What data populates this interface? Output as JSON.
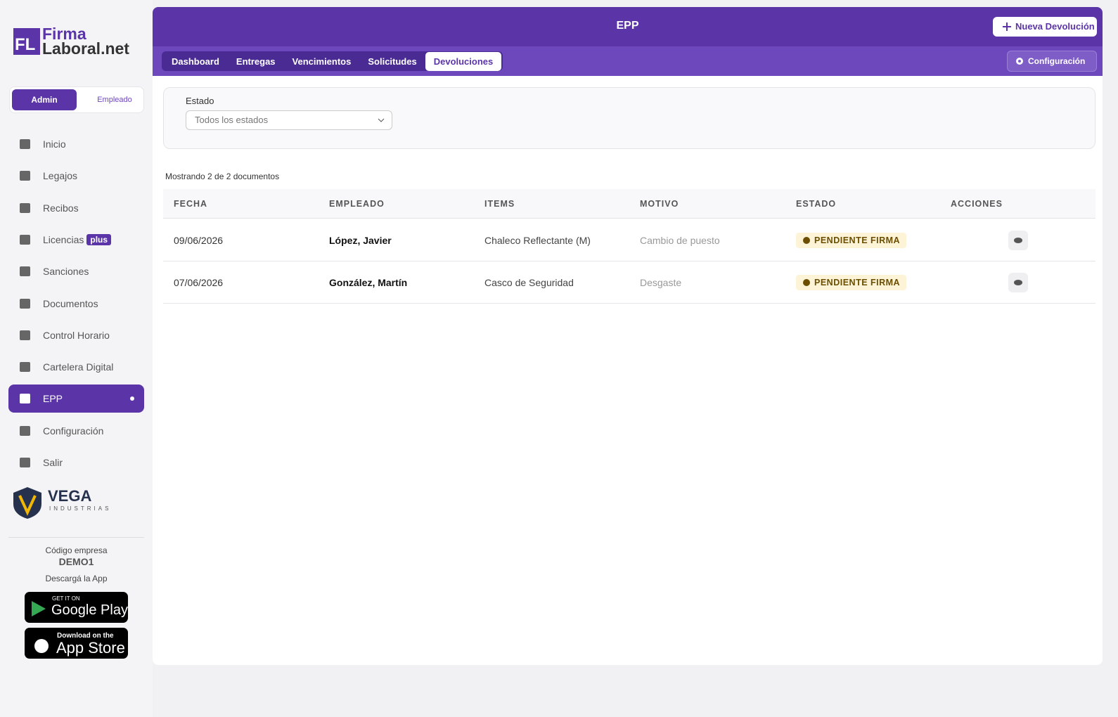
{
  "logo": {
    "mark": "FL",
    "line1": "Firma",
    "line2": "Laboral.net"
  },
  "role_toggle": [
    "Admin",
    "Empleado"
  ],
  "nav": [
    {
      "label": "Inicio"
    },
    {
      "label": "Legajos"
    },
    {
      "label": "Recibos"
    },
    {
      "label": "Licencias",
      "badge": "plus"
    },
    {
      "label": "Sanciones"
    },
    {
      "label": "Documentos"
    },
    {
      "label": "Control Horario"
    },
    {
      "label": "Cartelera Digital"
    },
    {
      "label": "EPP",
      "active": true
    },
    {
      "label": "Configuración"
    },
    {
      "label": "Salir"
    }
  ],
  "company_logo": {
    "name": "VEGA",
    "sub": "INDUSTRIAS"
  },
  "company": {
    "code_label": "Código empresa",
    "code": "DEMO1",
    "app_label": "Descargá la App"
  },
  "stores": [
    {
      "small": "GET IT ON",
      "big": "Google Play"
    },
    {
      "small": "Download on the",
      "big": "App Store"
    }
  ],
  "header": {
    "title": "EPP",
    "button": "Nueva Devolución"
  },
  "tabs": [
    {
      "label": "Dashboard"
    },
    {
      "label": "Entregas"
    },
    {
      "label": "Vencimientos"
    },
    {
      "label": "Solicitudes"
    },
    {
      "label": "Devoluciones",
      "active": true
    }
  ],
  "config_button": "Configuración",
  "filter": {
    "label": "Estado",
    "placeholder": "Todos los estados"
  },
  "summary": "Mostrando 2 de 2 documentos",
  "table": {
    "headers": [
      "FECHA",
      "EMPLEADO",
      "ITEMS",
      "MOTIVO",
      "ESTADO",
      "ACCIONES"
    ],
    "rows": [
      [
        "09/06/2026",
        "López, Javier",
        "Chaleco Reflectante (M)",
        "Cambio de puesto",
        "PENDIENTE FIRMA"
      ],
      [
        "07/06/2026",
        "González, Martín",
        "Casco de Seguridad",
        "Desgaste",
        "PENDIENTE FIRMA"
      ]
    ]
  }
}
